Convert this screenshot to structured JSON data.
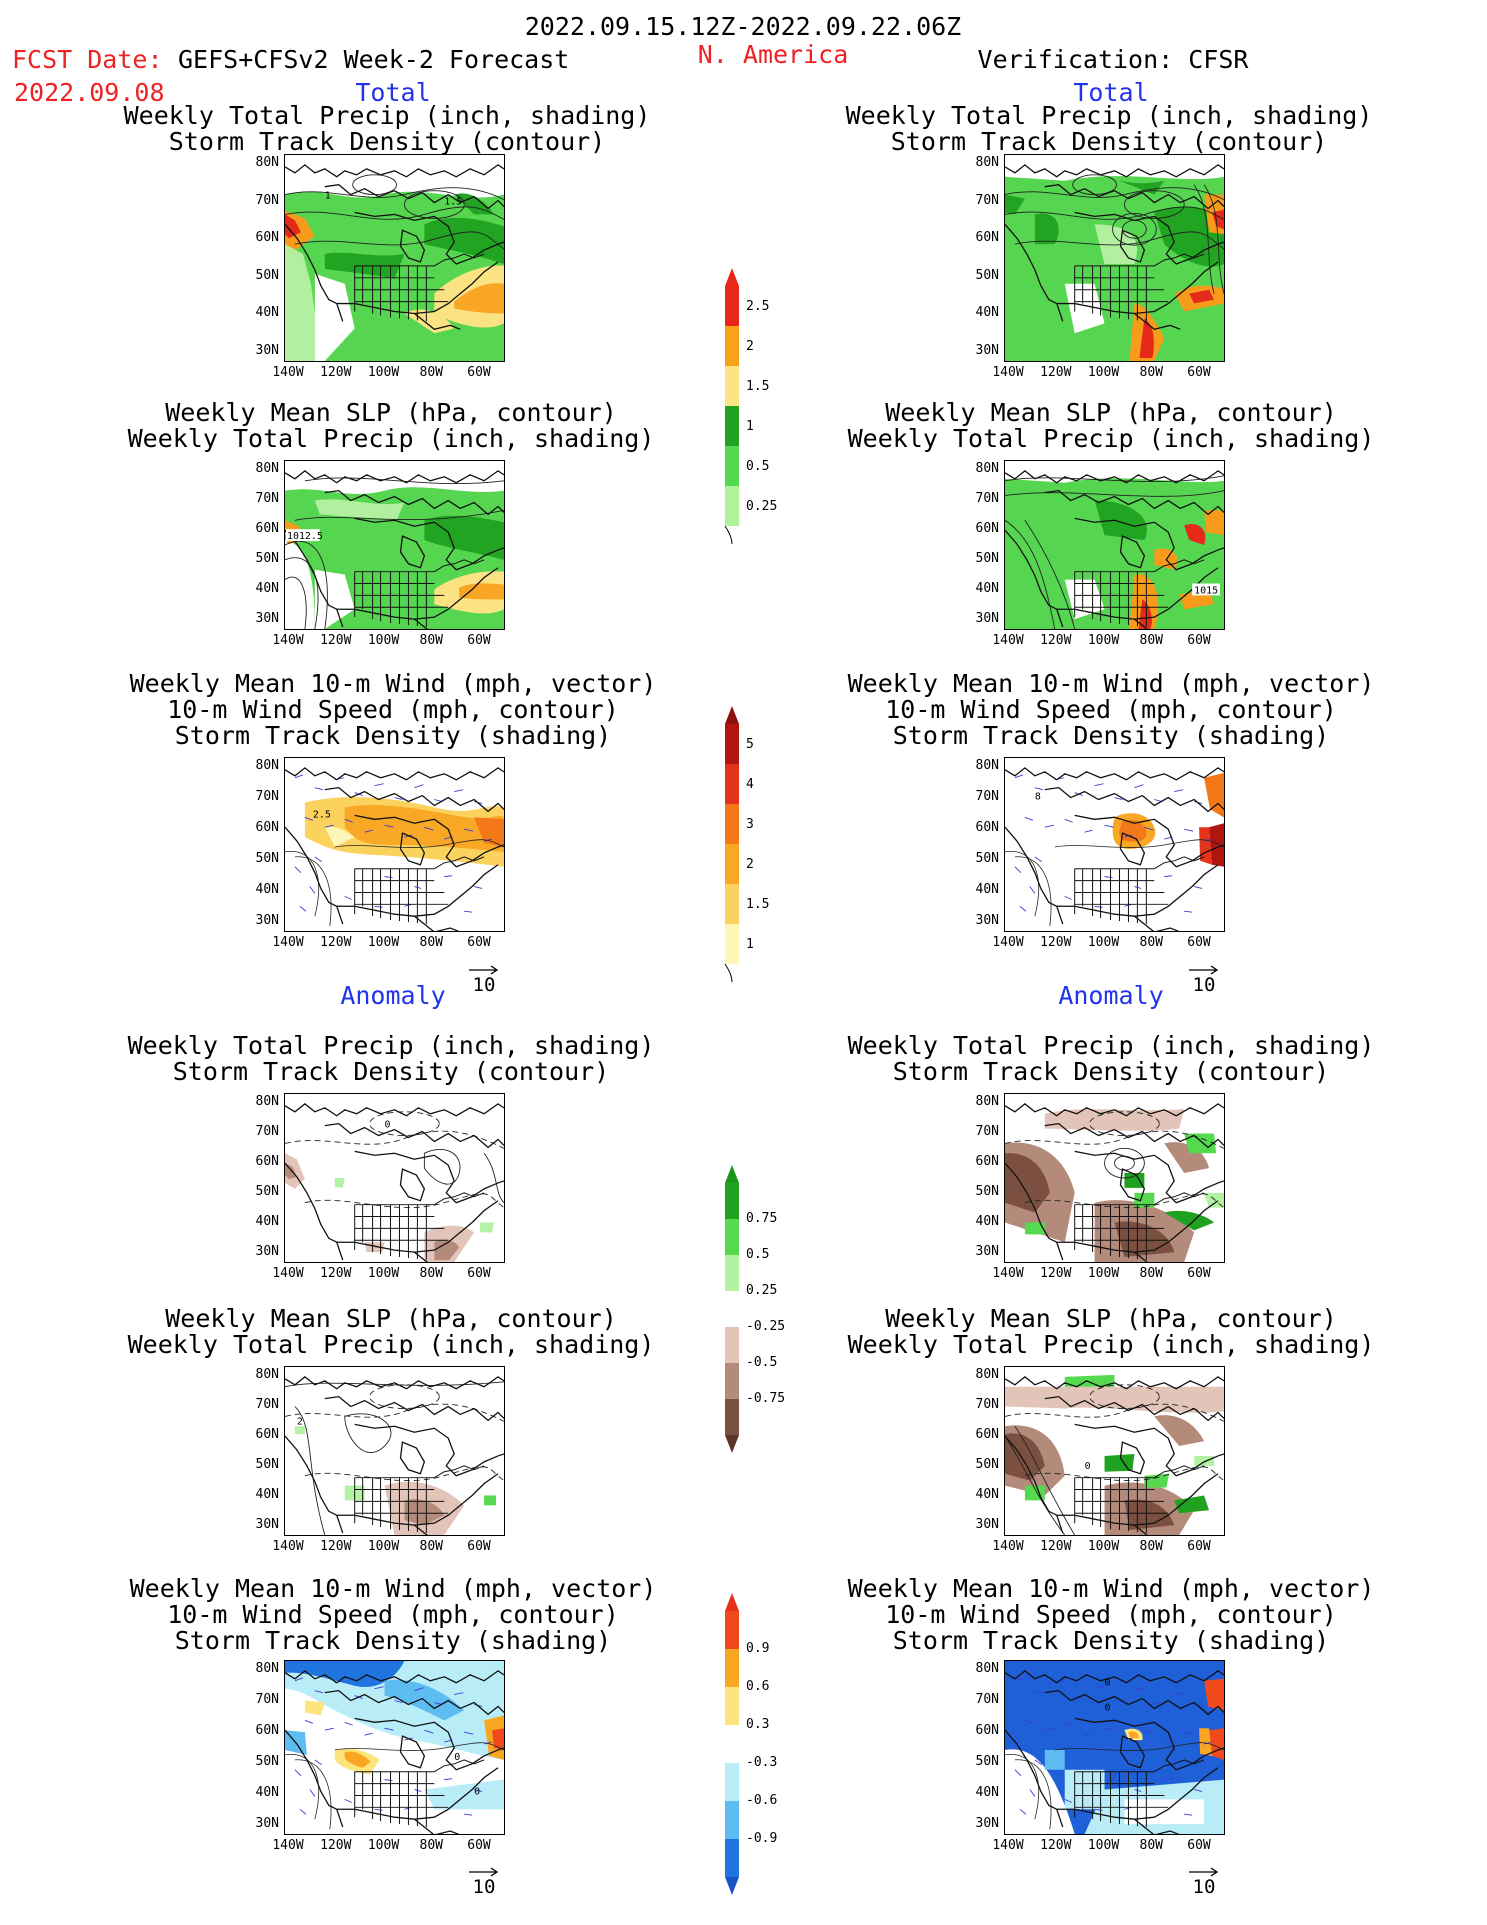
{
  "header": {
    "date_range": "2022.09.15.12Z-2022.09.22.06Z",
    "fcst_label": "FCST Date:",
    "fcst_date": "2022.09.08",
    "model": "GEFS+CFSv2 Week-2 Forecast",
    "region": "N. America",
    "verification": "Verification: CFSR"
  },
  "sections": {
    "total": "Total",
    "anomaly": "Anomaly"
  },
  "panel_titles": {
    "precip_track": [
      "Weekly Total Precip (inch, shading)",
      "Storm Track Density (contour)"
    ],
    "slp_precip": [
      "Weekly Mean SLP (hPa, contour)",
      "Weekly Total Precip (inch, shading)"
    ],
    "wind_track": [
      "Weekly Mean 10-m Wind (mph, vector)",
      "10-m Wind Speed (mph, contour)",
      "Storm Track Density (shading)"
    ]
  },
  "axes": {
    "lat_labels": [
      "80N",
      "70N",
      "60N",
      "50N",
      "40N",
      "30N"
    ],
    "lon_labels": [
      "140W",
      "120W",
      "100W",
      "80W",
      "60W"
    ]
  },
  "vector_ref": "10",
  "map_contour_labels": {
    "fc_total_precip": [
      "1",
      "1.5"
    ],
    "fc_total_slp": [
      "1012.5"
    ],
    "fc_total_wind": [
      "2.5"
    ],
    "obs_total_slp": [
      "1015"
    ],
    "obs_total_wind": [
      "8"
    ],
    "fc_anom_precip": [
      "0"
    ],
    "fc_anom_slp": [
      "2"
    ],
    "obs_anom_slp": [
      "0"
    ],
    "fc_anom_wind": [
      "0",
      "0"
    ],
    "obs_anom_wind": [
      "0",
      "0"
    ]
  },
  "colorbars": {
    "total_precip": {
      "labels": [
        "2.5",
        "2",
        "1.5",
        "1",
        "0.5",
        "0.25"
      ],
      "colors": [
        "#e8261b",
        "#f7a21b",
        "#fbe483",
        "#1fa320",
        "#52d94f",
        "#b0f29c"
      ]
    },
    "total_track": {
      "labels": [
        "5",
        "4",
        "3",
        "2",
        "1.5",
        "1"
      ],
      "colors": [
        "#b0150f",
        "#e4331b",
        "#f47818",
        "#f8a824",
        "#fbd25e",
        "#fdf6b6"
      ]
    },
    "anom_precip": {
      "labels": [
        "0.75",
        "0.5",
        "0.25",
        "-0.25",
        "-0.5",
        "-0.75"
      ],
      "colors": [
        "#1ea21f",
        "#54d94f",
        "#b3f2a2",
        "#ffffff",
        "#e2c5b8",
        "#b48b7a",
        "#7c5040"
      ]
    },
    "anom_track": {
      "labels": [
        "0.9",
        "0.6",
        "0.3",
        "-0.3",
        "-0.6",
        "-0.9"
      ],
      "colors": [
        "#f04a1c",
        "#f9a623",
        "#fde57e",
        "#ffffff",
        "#b8ecf7",
        "#5dbdf0",
        "#1f74e0"
      ]
    },
    "bar_top_colors": {
      "total_precip": "#e8261b",
      "total_track": "#8b0f0a",
      "anom_precip": "#1a961b",
      "anom_track": "#e8311a"
    },
    "bar_bottom_colors": {
      "anom_precip": "#5a3428",
      "anom_track": "#1654c8"
    }
  }
}
